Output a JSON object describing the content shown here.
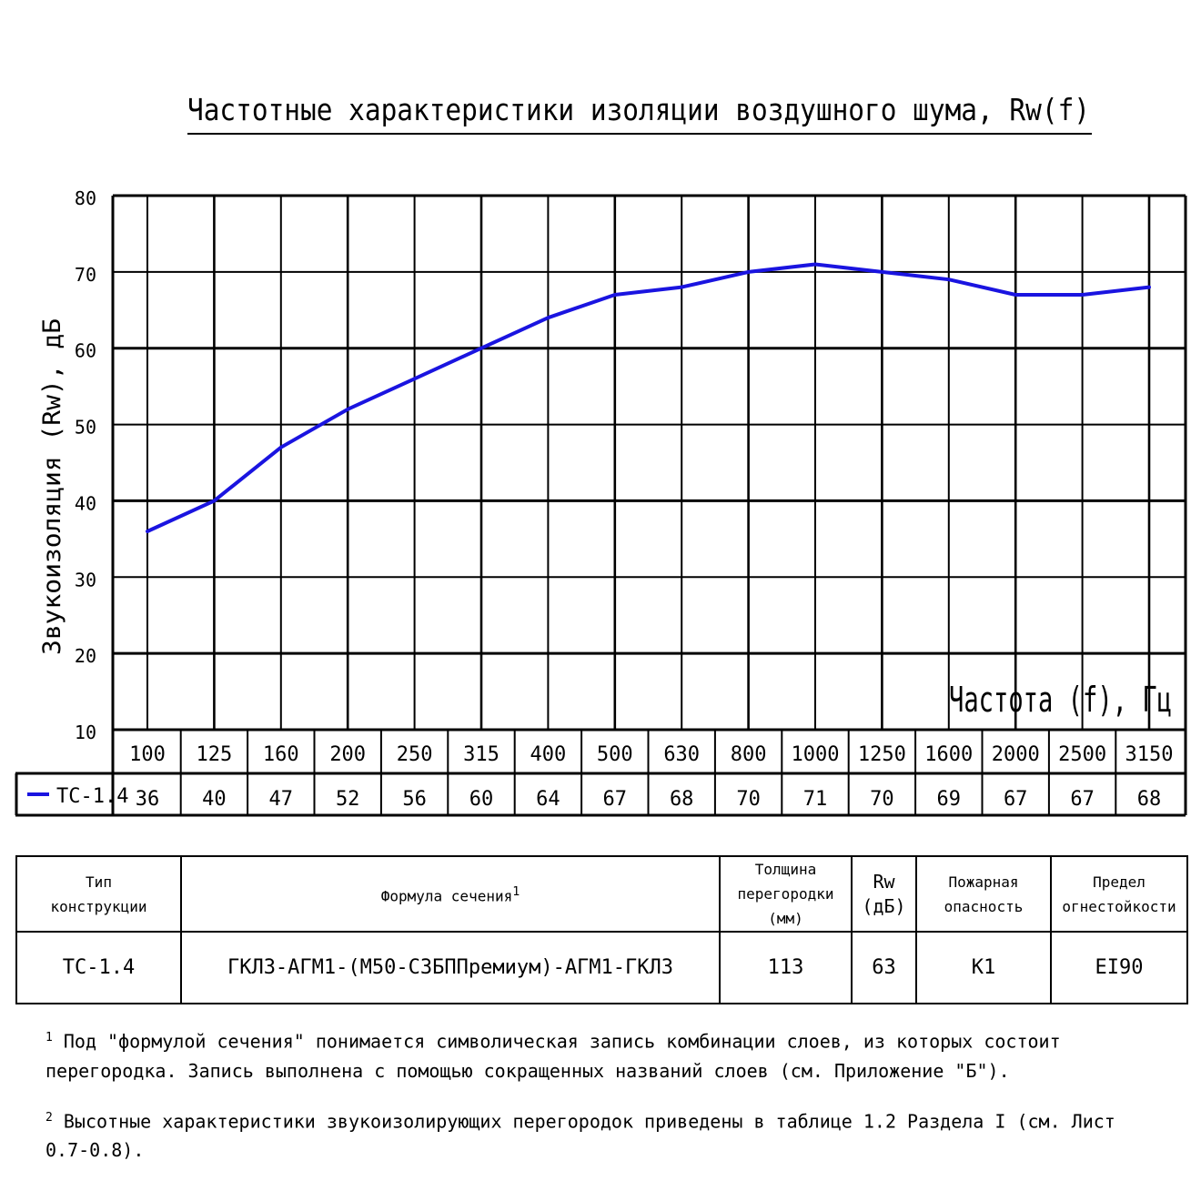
{
  "chart_data": {
    "type": "line",
    "title": "Частотные характеристики изоляции воздушного шума, Rw(f)",
    "xlabel": "Частота (f), Гц",
    "ylabel": "Звукоизоляция (Rw), дБ",
    "ylim": [
      10,
      80
    ],
    "yticks": [
      "10",
      "20",
      "30",
      "40",
      "50",
      "60",
      "70",
      "80"
    ],
    "categories": [
      "100",
      "125",
      "160",
      "200",
      "250",
      "315",
      "400",
      "500",
      "630",
      "800",
      "1000",
      "1250",
      "1600",
      "2000",
      "2500",
      "3150"
    ],
    "series": [
      {
        "name": "ТС-1.4",
        "color": "#1a14e0",
        "values": [
          36,
          40,
          47,
          52,
          56,
          60,
          64,
          67,
          68,
          70,
          71,
          70,
          69,
          67,
          67,
          68
        ]
      }
    ],
    "grid": true,
    "legend": "bottom-left, in data table"
  },
  "properties_table": {
    "headers": {
      "type_l1": "Тип",
      "type_l2": "конструкции",
      "formula": "Формула сечения",
      "formula_ref": "1",
      "thickness_l1": "Толщина",
      "thickness_l2": "перегородки (мм)",
      "rw_l1": "Rw",
      "rw_l2": "(дБ)",
      "fire_l1": "Пожарная",
      "fire_l2": "опасность",
      "limit_l1": "Предел",
      "limit_l2": "огнестойкости"
    },
    "row": {
      "type": "ТС-1.4",
      "formula": "ГКЛ3-АГМ1-(М50-СЗБППремиум)-АГМ1-ГКЛ3",
      "thickness": "113",
      "rw": "63",
      "fire": "К1",
      "limit": "EI90"
    }
  },
  "footnotes": [
    {
      "mark": "1",
      "text": "Под \"формулой сечения\" понимается символическая запись комбинации слоев, из которых состоит перегородка. Запись выполнена с помощью сокращенных названий слоев (см. Приложение \"Б\")."
    },
    {
      "mark": "2",
      "text": "Высотные характеристики звукоизолирующих перегородок приведены в таблице 1.2 Раздела I (см. Лист 0.7-0.8)."
    }
  ]
}
